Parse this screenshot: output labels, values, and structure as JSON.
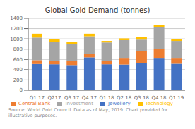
{
  "chart_data": {
    "type": "bar",
    "stacked": true,
    "title": "Global Gold Demand (tonnes)",
    "categories": [
      "Q1 17",
      "Q217",
      "Q3 17",
      "Q4 17",
      "Q1 18",
      "Q2 18",
      "Q3 18",
      "Q4 18",
      "Q1 19"
    ],
    "series": [
      {
        "name": "Jewellery",
        "color": "#4472C4",
        "values": [
          510,
          505,
          490,
          640,
          505,
          500,
          530,
          630,
          515
        ]
      },
      {
        "name": "Central Bank",
        "color": "#ED7D31",
        "values": [
          75,
          70,
          85,
          70,
          70,
          130,
          235,
          170,
          115
        ]
      },
      {
        "name": "Investment",
        "color": "#A5A5A5",
        "values": [
          440,
          370,
          330,
          340,
          355,
          345,
          220,
          430,
          330
        ]
      },
      {
        "name": "Technology",
        "color": "#FFC000",
        "values": [
          75,
          50,
          30,
          50,
          30,
          35,
          45,
          35,
          35
        ]
      }
    ],
    "ylim": [
      0,
      1400
    ],
    "yticks": [
      0,
      200,
      400,
      600,
      800,
      1000,
      1200,
      1400
    ],
    "grid": true,
    "legend": "bottom",
    "annotations": [
      "Source: World Gold Council. Data as of May, 2019. Chart provided for illustrative purposes."
    ]
  }
}
